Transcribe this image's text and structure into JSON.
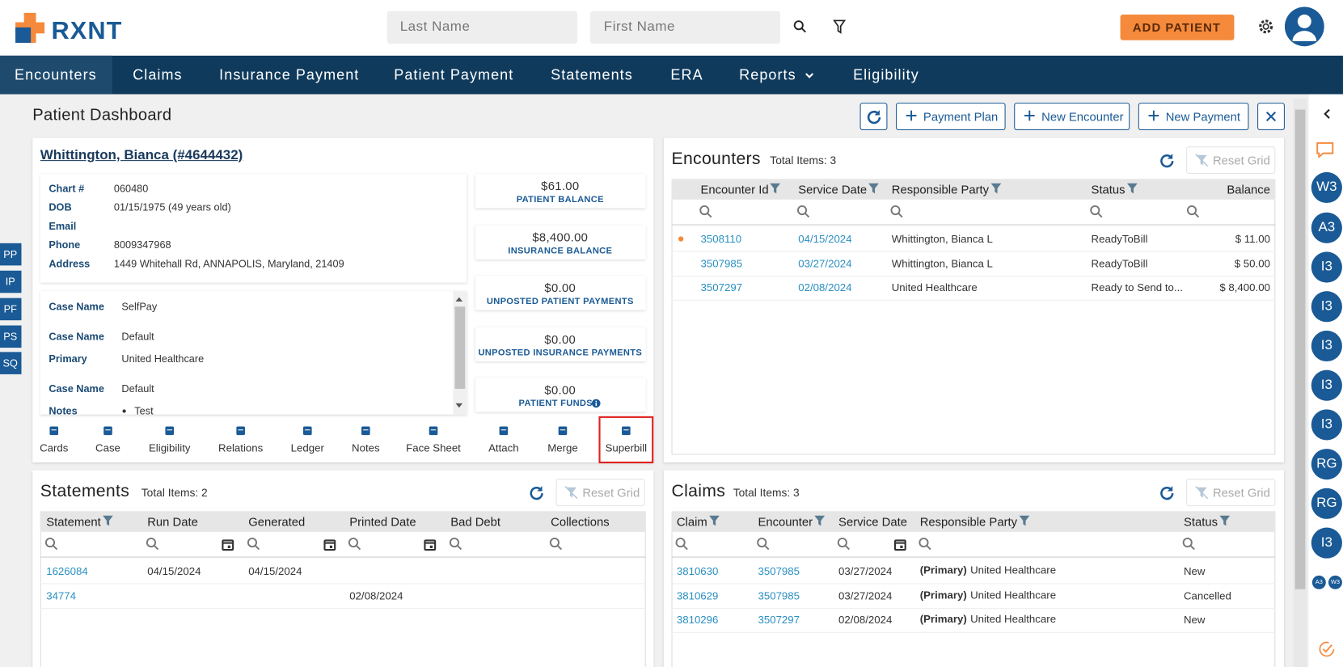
{
  "header": {
    "logo": "RXNT",
    "last_name_placeholder": "Last Name",
    "first_name_placeholder": "First Name",
    "add_patient": "ADD PATIENT"
  },
  "nav": [
    "Encounters",
    "Claims",
    "Insurance Payment",
    "Patient Payment",
    "Statements",
    "ERA",
    "Reports",
    "Eligibility"
  ],
  "page_title": "Patient Dashboard",
  "toolbar": [
    "Payment Plan",
    "New Encounter",
    "New Payment"
  ],
  "side_tabs": [
    "PP",
    "IP",
    "PF",
    "PS",
    "SQ"
  ],
  "right_rail": [
    "W3",
    "A3",
    "I3",
    "I3",
    "I3",
    "I3",
    "I3",
    "RG",
    "RG",
    "I3"
  ],
  "right_rail_small": [
    "A3",
    "W3"
  ],
  "patient": {
    "name": "Whittington, Bianca (#4644432)",
    "fields": [
      {
        "label": "Chart #",
        "value": "060480"
      },
      {
        "label": "DOB",
        "value": "01/15/1975 (49 years old)"
      },
      {
        "label": "Email"
      },
      {
        "label": "Phone",
        "value": "8009347968"
      },
      {
        "label": "Address",
        "value": "1449 Whitehall Rd, ANNAPOLIS, Maryland, 21409"
      }
    ],
    "cases": [
      {
        "label": "Case Name",
        "value": "SelfPay"
      },
      {
        "label": "Case Name",
        "value": "Default"
      },
      {
        "label": "Primary",
        "value": "United Healthcare"
      },
      {
        "label": "Case Name",
        "value": "Default"
      },
      {
        "label": "Notes",
        "value": "Test"
      }
    ],
    "balances": [
      {
        "amount": "$61.00",
        "label": "PATIENT BALANCE"
      },
      {
        "amount": "$8,400.00",
        "label": "INSURANCE BALANCE"
      },
      {
        "amount": "$0.00",
        "label": "UNPOSTED PATIENT PAYMENTS"
      },
      {
        "amount": "$0.00",
        "label": "UNPOSTED INSURANCE PAYMENTS"
      },
      {
        "amount": "$0.00",
        "label": "PATIENT FUNDS"
      }
    ],
    "actions": [
      "Cards",
      "Case",
      "Eligibility",
      "Relations",
      "Ledger",
      "Notes",
      "Face Sheet",
      "Attach",
      "Merge",
      "Superbill"
    ]
  },
  "encounters": {
    "title": "Encounters",
    "total": "Total Items: 3",
    "reset": "Reset Grid",
    "columns": [
      "Encounter Id",
      "Service Date",
      "Responsible Party",
      "Status",
      "Balance"
    ],
    "rows": [
      [
        "3508110",
        "04/15/2024",
        "Whittington, Bianca L",
        "ReadyToBill",
        "$ 11.00"
      ],
      [
        "3507985",
        "03/27/2024",
        "Whittington, Bianca L",
        "ReadyToBill",
        "$ 50.00"
      ],
      [
        "3507297",
        "02/08/2024",
        "United Healthcare",
        "Ready to Send to...",
        "$ 8,400.00"
      ]
    ]
  },
  "statements": {
    "title": "Statements",
    "total": "Total Items: 2",
    "reset": "Reset Grid",
    "columns": [
      "Statement",
      "Run Date",
      "Generated",
      "Printed Date",
      "Bad Debt",
      "Collections"
    ],
    "rows": [
      [
        "1626084",
        "04/15/2024",
        "04/15/2024",
        null,
        null,
        null
      ],
      [
        "34774",
        null,
        null,
        "02/08/2024",
        null,
        null
      ]
    ]
  },
  "claims": {
    "title": "Claims",
    "total": "Total Items: 3",
    "reset": "Reset Grid",
    "columns": [
      "Claim",
      "Encounter",
      "Service Date",
      "Responsible Party",
      "Status"
    ],
    "rows": [
      [
        "3810630",
        "3507985",
        "03/27/2024",
        [
          "(Primary)",
          "United Healthcare"
        ],
        "New"
      ],
      [
        "3810629",
        "3507985",
        "03/27/2024",
        [
          "(Primary)",
          "United Healthcare"
        ],
        "Cancelled"
      ],
      [
        "3810296",
        "3507297",
        "02/08/2024",
        [
          "(Primary)",
          "United Healthcare"
        ],
        "New"
      ]
    ]
  }
}
